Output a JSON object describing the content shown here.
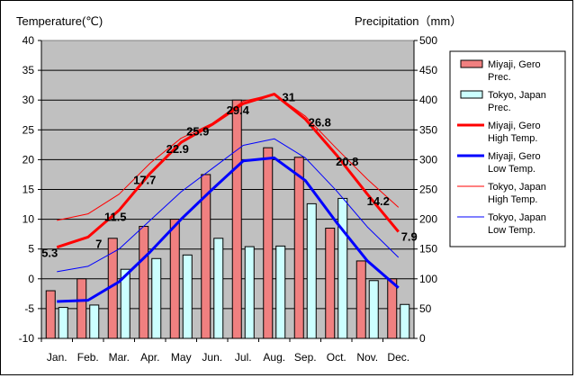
{
  "chart_data": {
    "type": "bar+line",
    "title": "",
    "categories": [
      "Jan.",
      "Feb.",
      "Mar.",
      "Apr.",
      "May",
      "Jun.",
      "Jul.",
      "Aug.",
      "Sep.",
      "Oct.",
      "Nov.",
      "Dec."
    ],
    "left_axis": {
      "label": "Temperature(℃)",
      "range": [
        -10,
        40
      ],
      "ticks": [
        -10,
        -5,
        0,
        5,
        10,
        15,
        20,
        25,
        30,
        35,
        40
      ]
    },
    "right_axis": {
      "label": "Precipitation（mm）",
      "range": [
        0,
        500
      ],
      "ticks": [
        0,
        50,
        100,
        150,
        200,
        250,
        300,
        350,
        400,
        450,
        500
      ]
    },
    "grid": true,
    "legend_position": "right",
    "series": [
      {
        "name": "Miyaji, Gero Prec.",
        "legend_lines": [
          "Miyaji, Gero",
          "Prec."
        ],
        "kind": "bar",
        "axis": "right",
        "color": "#f08080",
        "values": [
          80,
          100,
          168,
          188,
          200,
          275,
          400,
          320,
          304,
          185,
          130,
          100
        ]
      },
      {
        "name": "Tokyo, Japan Prec.",
        "legend_lines": [
          "Tokyo, Japan",
          "Prec."
        ],
        "kind": "bar",
        "axis": "right",
        "color": "#ccffff",
        "values": [
          52,
          56,
          116,
          134,
          140,
          168,
          154,
          155,
          226,
          235,
          97,
          57
        ]
      },
      {
        "name": "Miyaji, Gero High Temp.",
        "legend_lines": [
          "Miyaji, Gero",
          "High Temp."
        ],
        "kind": "line",
        "axis": "left",
        "color": "#ff0000",
        "width": 3,
        "values": [
          5.3,
          7.0,
          11.5,
          17.7,
          22.9,
          25.9,
          29.4,
          31.0,
          26.8,
          20.8,
          14.2,
          7.9
        ]
      },
      {
        "name": "Miyaji, Gero Low Temp.",
        "legend_lines": [
          "Miyaji, Gero",
          "Low Temp."
        ],
        "kind": "line",
        "axis": "left",
        "color": "#0000ff",
        "width": 3,
        "values": [
          -3.8,
          -3.6,
          -0.5,
          4.5,
          10.0,
          15.0,
          19.8,
          20.3,
          16.5,
          9.5,
          3.0,
          -1.5
        ]
      },
      {
        "name": "Tokyo, Japan High Temp.",
        "legend_lines": [
          "Tokyo, Japan",
          "High Temp."
        ],
        "kind": "line",
        "axis": "left",
        "color": "#ff0000",
        "width": 1,
        "values": [
          9.8,
          10.9,
          14.2,
          19.4,
          23.6,
          26.1,
          29.8,
          31.0,
          27.3,
          21.9,
          16.7,
          12.0
        ]
      },
      {
        "name": "Tokyo, Japan Low Temp.",
        "legend_lines": [
          "Tokyo, Japan",
          "Low Temp."
        ],
        "kind": "line",
        "axis": "left",
        "color": "#0000ff",
        "width": 1,
        "values": [
          1.2,
          2.1,
          5.0,
          9.8,
          14.6,
          18.5,
          22.4,
          23.5,
          20.3,
          14.8,
          8.7,
          3.6
        ]
      }
    ],
    "data_labels": {
      "series": "Miyaji, Gero High Temp.",
      "values": [
        "5.3",
        "7",
        "11.5",
        "17.7",
        "22.9",
        "25.9",
        "29.4",
        "31",
        "26.8",
        "20.8",
        "14.2",
        "7.9"
      ]
    }
  }
}
